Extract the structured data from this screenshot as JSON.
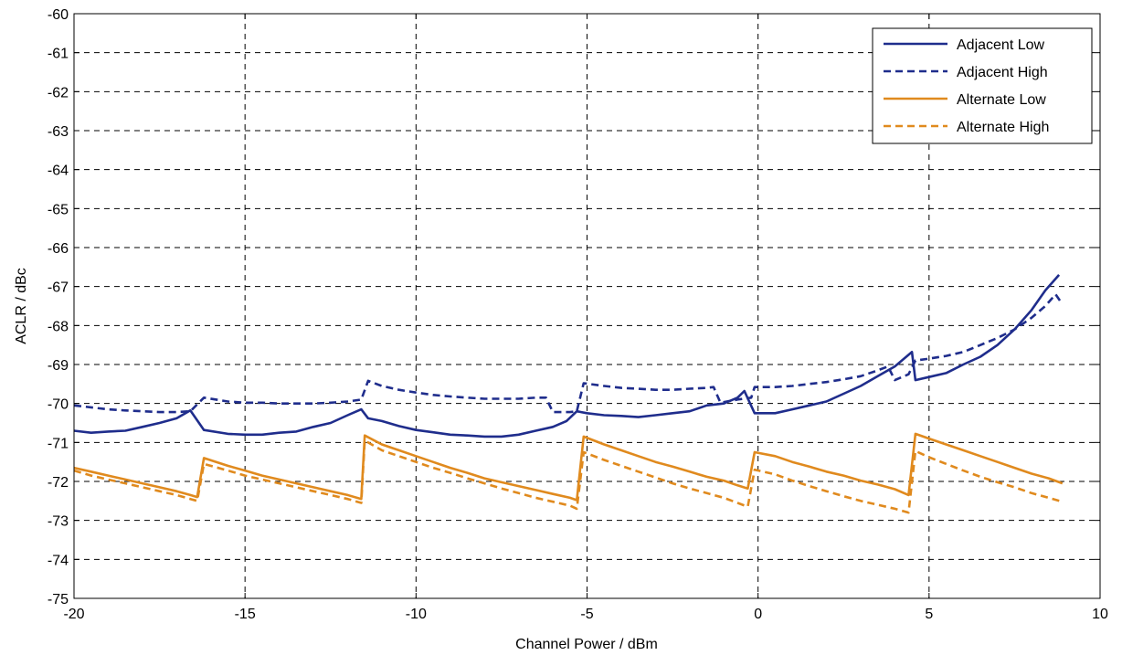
{
  "chart_data": {
    "type": "line",
    "title": "",
    "xlabel": "Channel Power / dBm",
    "ylabel": "ACLR / dBc",
    "xlim": [
      -20,
      10
    ],
    "ylim": [
      -75,
      -60
    ],
    "xticks": [
      -20,
      -15,
      -10,
      -5,
      0,
      5,
      10
    ],
    "yticks": [
      -60,
      -61,
      -62,
      -63,
      -64,
      -65,
      -66,
      -67,
      -68,
      -69,
      -70,
      -71,
      -72,
      -73,
      -74,
      -75
    ],
    "xtick_labels": [
      "-20",
      "-15",
      "-10",
      "-5",
      "0",
      "5",
      "10"
    ],
    "ytick_labels": [
      "-60",
      "-61",
      "-62",
      "-63",
      "-64",
      "-65",
      "-66",
      "-67",
      "-68",
      "-69",
      "-70",
      "-71",
      "-72",
      "-73",
      "-74",
      "-75"
    ],
    "grid": true,
    "legend_position": "top-right",
    "series": [
      {
        "name": "Adjacent Low",
        "color": "#1f2d8c",
        "dash": "solid",
        "points": [
          [
            -20,
            -70.7
          ],
          [
            -19.5,
            -70.75
          ],
          [
            -19,
            -70.72
          ],
          [
            -18.5,
            -70.7
          ],
          [
            -18,
            -70.6
          ],
          [
            -17.5,
            -70.5
          ],
          [
            -17,
            -70.38
          ],
          [
            -16.6,
            -70.18
          ],
          [
            -16.2,
            -70.68
          ],
          [
            -15.5,
            -70.78
          ],
          [
            -15,
            -70.8
          ],
          [
            -14.5,
            -70.8
          ],
          [
            -14,
            -70.75
          ],
          [
            -13.5,
            -70.72
          ],
          [
            -13,
            -70.6
          ],
          [
            -12.5,
            -70.5
          ],
          [
            -12,
            -70.3
          ],
          [
            -11.6,
            -70.15
          ],
          [
            -11.4,
            -70.38
          ],
          [
            -11,
            -70.45
          ],
          [
            -10.5,
            -70.58
          ],
          [
            -10,
            -70.68
          ],
          [
            -9.5,
            -70.74
          ],
          [
            -9,
            -70.8
          ],
          [
            -8.5,
            -70.82
          ],
          [
            -8,
            -70.85
          ],
          [
            -7.5,
            -70.85
          ],
          [
            -7,
            -70.8
          ],
          [
            -6.5,
            -70.7
          ],
          [
            -6,
            -70.6
          ],
          [
            -5.6,
            -70.45
          ],
          [
            -5.3,
            -70.2
          ],
          [
            -5,
            -70.25
          ],
          [
            -4.5,
            -70.3
          ],
          [
            -4,
            -70.32
          ],
          [
            -3.5,
            -70.35
          ],
          [
            -3,
            -70.3
          ],
          [
            -2.5,
            -70.25
          ],
          [
            -2,
            -70.2
          ],
          [
            -1.5,
            -70.05
          ],
          [
            -1,
            -70.0
          ],
          [
            -0.6,
            -69.85
          ],
          [
            -0.4,
            -69.68
          ],
          [
            -0.1,
            -70.25
          ],
          [
            0,
            -70.25
          ],
          [
            0.5,
            -70.25
          ],
          [
            1,
            -70.15
          ],
          [
            1.5,
            -70.05
          ],
          [
            2,
            -69.95
          ],
          [
            2.5,
            -69.75
          ],
          [
            3,
            -69.55
          ],
          [
            3.5,
            -69.3
          ],
          [
            4,
            -69.05
          ],
          [
            4.5,
            -68.68
          ],
          [
            4.6,
            -69.4
          ],
          [
            5,
            -69.32
          ],
          [
            5.5,
            -69.22
          ],
          [
            6,
            -69.0
          ],
          [
            6.5,
            -68.8
          ],
          [
            7,
            -68.5
          ],
          [
            7.5,
            -68.1
          ],
          [
            8,
            -67.6
          ],
          [
            8.4,
            -67.1
          ],
          [
            8.8,
            -66.7
          ]
        ]
      },
      {
        "name": "Adjacent High",
        "color": "#1f2d8c",
        "dash": "dashed",
        "points": [
          [
            -20,
            -70.05
          ],
          [
            -19.5,
            -70.1
          ],
          [
            -19,
            -70.15
          ],
          [
            -18.5,
            -70.18
          ],
          [
            -18,
            -70.2
          ],
          [
            -17.5,
            -70.22
          ],
          [
            -17,
            -70.22
          ],
          [
            -16.6,
            -70.2
          ],
          [
            -16.2,
            -69.85
          ],
          [
            -15.5,
            -69.95
          ],
          [
            -15,
            -69.98
          ],
          [
            -14.5,
            -69.98
          ],
          [
            -14,
            -70.0
          ],
          [
            -13.5,
            -70.0
          ],
          [
            -13,
            -70.0
          ],
          [
            -12.5,
            -69.98
          ],
          [
            -12,
            -69.95
          ],
          [
            -11.6,
            -69.9
          ],
          [
            -11.4,
            -69.42
          ],
          [
            -11,
            -69.55
          ],
          [
            -10.5,
            -69.65
          ],
          [
            -10,
            -69.72
          ],
          [
            -9.5,
            -69.78
          ],
          [
            -9,
            -69.82
          ],
          [
            -8.5,
            -69.85
          ],
          [
            -8,
            -69.88
          ],
          [
            -7.5,
            -69.88
          ],
          [
            -7,
            -69.88
          ],
          [
            -6.5,
            -69.85
          ],
          [
            -6.2,
            -69.85
          ],
          [
            -6,
            -70.22
          ],
          [
            -5.5,
            -70.22
          ],
          [
            -5.3,
            -70.2
          ],
          [
            -5.1,
            -69.48
          ],
          [
            -4.5,
            -69.55
          ],
          [
            -4,
            -69.6
          ],
          [
            -3.5,
            -69.62
          ],
          [
            -3,
            -69.65
          ],
          [
            -2.5,
            -69.65
          ],
          [
            -2,
            -69.62
          ],
          [
            -1.5,
            -69.6
          ],
          [
            -1.3,
            -69.58
          ],
          [
            -1.1,
            -69.98
          ],
          [
            -0.6,
            -69.9
          ],
          [
            -0.2,
            -69.85
          ],
          [
            -0.1,
            -69.58
          ],
          [
            0.5,
            -69.58
          ],
          [
            1,
            -69.55
          ],
          [
            1.5,
            -69.5
          ],
          [
            2,
            -69.45
          ],
          [
            2.5,
            -69.38
          ],
          [
            3,
            -69.3
          ],
          [
            3.5,
            -69.15
          ],
          [
            3.8,
            -69.05
          ],
          [
            4.0,
            -69.4
          ],
          [
            4.4,
            -69.25
          ],
          [
            4.6,
            -68.9
          ],
          [
            5,
            -68.85
          ],
          [
            5.5,
            -68.78
          ],
          [
            6,
            -68.68
          ],
          [
            6.5,
            -68.5
          ],
          [
            7,
            -68.32
          ],
          [
            7.5,
            -68.1
          ],
          [
            8,
            -67.8
          ],
          [
            8.4,
            -67.5
          ],
          [
            8.7,
            -67.2
          ],
          [
            8.9,
            -67.45
          ]
        ]
      },
      {
        "name": "Alternate Low",
        "color": "#e08a1e",
        "dash": "solid",
        "points": [
          [
            -20,
            -71.65
          ],
          [
            -19.5,
            -71.75
          ],
          [
            -19,
            -71.85
          ],
          [
            -18.5,
            -71.95
          ],
          [
            -18,
            -72.05
          ],
          [
            -17.5,
            -72.15
          ],
          [
            -17,
            -72.25
          ],
          [
            -16.6,
            -72.35
          ],
          [
            -16.4,
            -72.4
          ],
          [
            -16.2,
            -71.4
          ],
          [
            -15.5,
            -71.6
          ],
          [
            -15,
            -71.72
          ],
          [
            -14.5,
            -71.85
          ],
          [
            -14,
            -71.95
          ],
          [
            -13.5,
            -72.05
          ],
          [
            -13,
            -72.15
          ],
          [
            -12.5,
            -72.25
          ],
          [
            -12,
            -72.35
          ],
          [
            -11.6,
            -72.45
          ],
          [
            -11.5,
            -70.82
          ],
          [
            -11,
            -71.05
          ],
          [
            -10.5,
            -71.2
          ],
          [
            -10,
            -71.35
          ],
          [
            -9.5,
            -71.5
          ],
          [
            -9,
            -71.65
          ],
          [
            -8.5,
            -71.78
          ],
          [
            -8,
            -71.92
          ],
          [
            -7.5,
            -72.02
          ],
          [
            -7,
            -72.12
          ],
          [
            -6.5,
            -72.22
          ],
          [
            -6,
            -72.32
          ],
          [
            -5.5,
            -72.42
          ],
          [
            -5.3,
            -72.48
          ],
          [
            -5.1,
            -70.85
          ],
          [
            -4.5,
            -71.05
          ],
          [
            -4,
            -71.2
          ],
          [
            -3.5,
            -71.35
          ],
          [
            -3,
            -71.5
          ],
          [
            -2.5,
            -71.62
          ],
          [
            -2,
            -71.75
          ],
          [
            -1.5,
            -71.88
          ],
          [
            -1,
            -71.98
          ],
          [
            -0.6,
            -72.1
          ],
          [
            -0.3,
            -72.18
          ],
          [
            -0.1,
            -71.25
          ],
          [
            0.5,
            -71.35
          ],
          [
            1,
            -71.5
          ],
          [
            1.5,
            -71.62
          ],
          [
            2,
            -71.75
          ],
          [
            2.5,
            -71.85
          ],
          [
            3,
            -71.98
          ],
          [
            3.5,
            -72.08
          ],
          [
            4,
            -72.2
          ],
          [
            4.4,
            -72.35
          ],
          [
            4.6,
            -70.78
          ],
          [
            5,
            -70.9
          ],
          [
            5.5,
            -71.05
          ],
          [
            6,
            -71.2
          ],
          [
            6.5,
            -71.35
          ],
          [
            7,
            -71.5
          ],
          [
            7.5,
            -71.65
          ],
          [
            8,
            -71.8
          ],
          [
            8.5,
            -71.92
          ],
          [
            8.9,
            -72.05
          ]
        ]
      },
      {
        "name": "Alternate High",
        "color": "#e08a1e",
        "dash": "dashed",
        "points": [
          [
            -20,
            -71.72
          ],
          [
            -19.5,
            -71.85
          ],
          [
            -19,
            -71.95
          ],
          [
            -18.5,
            -72.05
          ],
          [
            -18,
            -72.15
          ],
          [
            -17.5,
            -72.25
          ],
          [
            -17,
            -72.35
          ],
          [
            -16.6,
            -72.45
          ],
          [
            -16.4,
            -72.5
          ],
          [
            -16.2,
            -71.55
          ],
          [
            -15.5,
            -71.72
          ],
          [
            -15,
            -71.85
          ],
          [
            -14.5,
            -71.95
          ],
          [
            -14,
            -72.05
          ],
          [
            -13.5,
            -72.15
          ],
          [
            -13,
            -72.25
          ],
          [
            -12.5,
            -72.35
          ],
          [
            -12,
            -72.45
          ],
          [
            -11.6,
            -72.55
          ],
          [
            -11.5,
            -70.95
          ],
          [
            -11,
            -71.2
          ],
          [
            -10.5,
            -71.35
          ],
          [
            -10,
            -71.5
          ],
          [
            -9.5,
            -71.65
          ],
          [
            -9,
            -71.78
          ],
          [
            -8.5,
            -71.92
          ],
          [
            -8,
            -72.05
          ],
          [
            -7.5,
            -72.18
          ],
          [
            -7,
            -72.3
          ],
          [
            -6.5,
            -72.42
          ],
          [
            -6,
            -72.52
          ],
          [
            -5.5,
            -72.62
          ],
          [
            -5.3,
            -72.7
          ],
          [
            -5.1,
            -71.25
          ],
          [
            -4.5,
            -71.45
          ],
          [
            -4,
            -71.6
          ],
          [
            -3.5,
            -71.75
          ],
          [
            -3,
            -71.9
          ],
          [
            -2.5,
            -72.05
          ],
          [
            -2,
            -72.18
          ],
          [
            -1.5,
            -72.3
          ],
          [
            -1,
            -72.42
          ],
          [
            -0.6,
            -72.55
          ],
          [
            -0.3,
            -72.65
          ],
          [
            -0.1,
            -71.7
          ],
          [
            0.5,
            -71.82
          ],
          [
            1,
            -71.98
          ],
          [
            1.5,
            -72.12
          ],
          [
            2,
            -72.25
          ],
          [
            2.5,
            -72.38
          ],
          [
            3,
            -72.5
          ],
          [
            3.5,
            -72.6
          ],
          [
            4,
            -72.7
          ],
          [
            4.4,
            -72.8
          ],
          [
            4.6,
            -71.22
          ],
          [
            5,
            -71.38
          ],
          [
            5.5,
            -71.55
          ],
          [
            6,
            -71.72
          ],
          [
            6.5,
            -71.88
          ],
          [
            7,
            -72.02
          ],
          [
            7.5,
            -72.15
          ],
          [
            8,
            -72.3
          ],
          [
            8.5,
            -72.42
          ],
          [
            8.9,
            -72.52
          ]
        ]
      }
    ]
  }
}
